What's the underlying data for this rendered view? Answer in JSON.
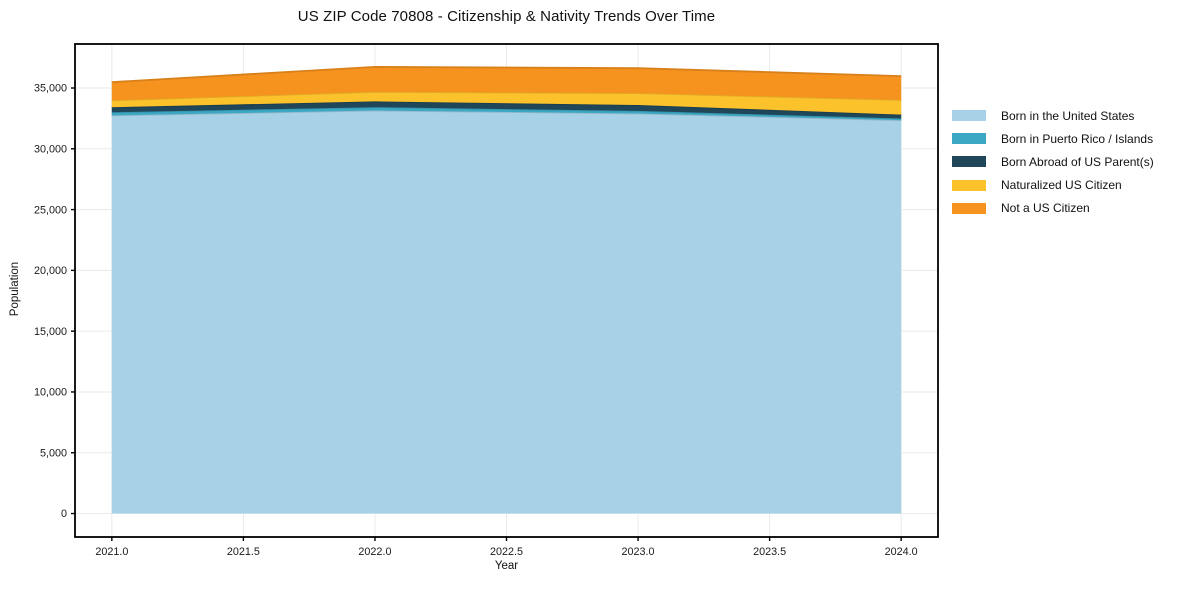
{
  "chart_data": {
    "type": "area",
    "stacked": true,
    "title": "US ZIP Code 70808 - Citizenship & Nativity Trends Over Time",
    "xlabel": "Year",
    "ylabel": "Population",
    "x": [
      2021,
      2022,
      2023,
      2024
    ],
    "series": [
      {
        "name": "Born in the United States",
        "color": "#a7d1e6",
        "values": [
          32750,
          33150,
          32900,
          32350
        ]
      },
      {
        "name": "Born in Puerto Rico / Islands",
        "color": "#3ca8c4",
        "values": [
          250,
          270,
          220,
          140
        ]
      },
      {
        "name": "Born Abroad of US Parent(s)",
        "color": "#1f4759",
        "values": [
          420,
          480,
          480,
          320
        ]
      },
      {
        "name": "Naturalized US Citizen",
        "color": "#fcc22c",
        "values": [
          560,
          790,
          980,
          1210
        ]
      },
      {
        "name": "Not a US Citizen",
        "color": "#f6921e",
        "values": [
          1510,
          2050,
          2050,
          1960
        ]
      }
    ],
    "totals": [
      35490,
      36740,
      36630,
      35980
    ],
    "xticks": [
      2021.0,
      2021.5,
      2022.0,
      2022.5,
      2023.0,
      2023.5,
      2024.0
    ],
    "x_tick_labels": [
      "2021.0",
      "2021.5",
      "2022.0",
      "2022.5",
      "2023.0",
      "2023.5",
      "2024.0"
    ],
    "yticks": [
      0,
      5000,
      10000,
      15000,
      20000,
      25000,
      30000,
      35000
    ],
    "y_tick_labels": [
      "0",
      "5,000",
      "10,000",
      "15,000",
      "20,000",
      "25,000",
      "30,000",
      "35,000"
    ],
    "xlim": [
      2020.86,
      2024.14
    ],
    "ylim": [
      -1930,
      38620
    ],
    "grid": true,
    "grid_color": "#eaeaea",
    "spine_color": "#000000",
    "background_color": "#ffffff",
    "legend_position": "right"
  }
}
